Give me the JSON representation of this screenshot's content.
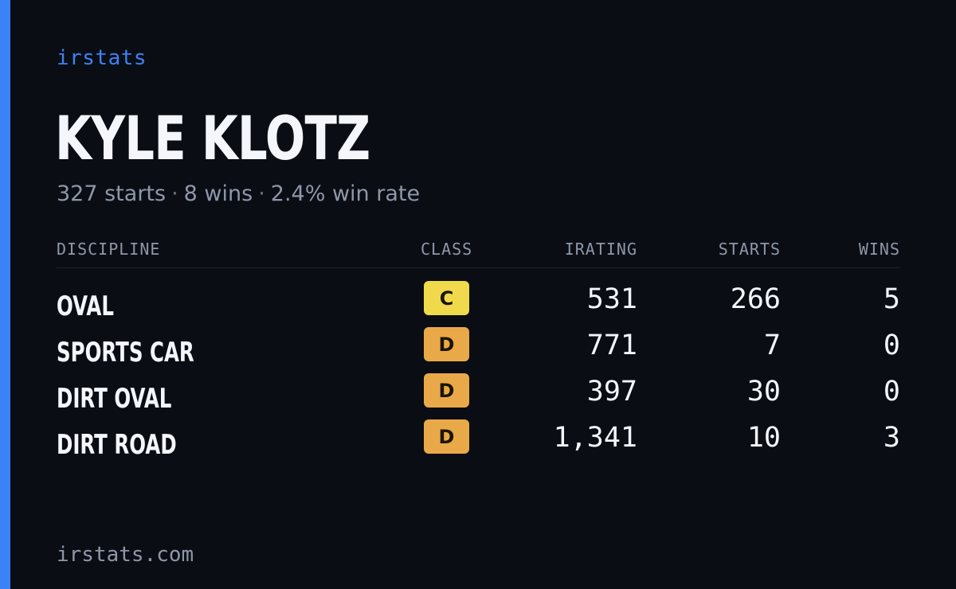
{
  "brand": "irstats",
  "driver": {
    "name": "KYLE KLOTZ",
    "starts_text": "327 starts",
    "wins_text": "8 wins",
    "win_rate_text": "2.4% win rate",
    "separator": "·"
  },
  "table": {
    "headers": {
      "discipline": "DISCIPLINE",
      "class": "CLASS",
      "irating": "IRATING",
      "starts": "STARTS",
      "wins": "WINS"
    },
    "rows": [
      {
        "discipline": "OVAL",
        "class": "C",
        "class_color": "#f0d94a",
        "irating": "531",
        "starts": "266",
        "wins": "5"
      },
      {
        "discipline": "SPORTS CAR",
        "class": "D",
        "class_color": "#e9a948",
        "irating": "771",
        "starts": "7",
        "wins": "0"
      },
      {
        "discipline": "DIRT OVAL",
        "class": "D",
        "class_color": "#e9a948",
        "irating": "397",
        "starts": "30",
        "wins": "0"
      },
      {
        "discipline": "DIRT ROAD",
        "class": "D",
        "class_color": "#e9a948",
        "irating": "1,341",
        "starts": "10",
        "wins": "3"
      }
    ]
  },
  "footer": {
    "domain": "irstats.com"
  },
  "colors": {
    "accent": "#3b82f6",
    "background": "#0a0d14",
    "muted": "#8e97a8",
    "text": "#f4f6fb"
  }
}
